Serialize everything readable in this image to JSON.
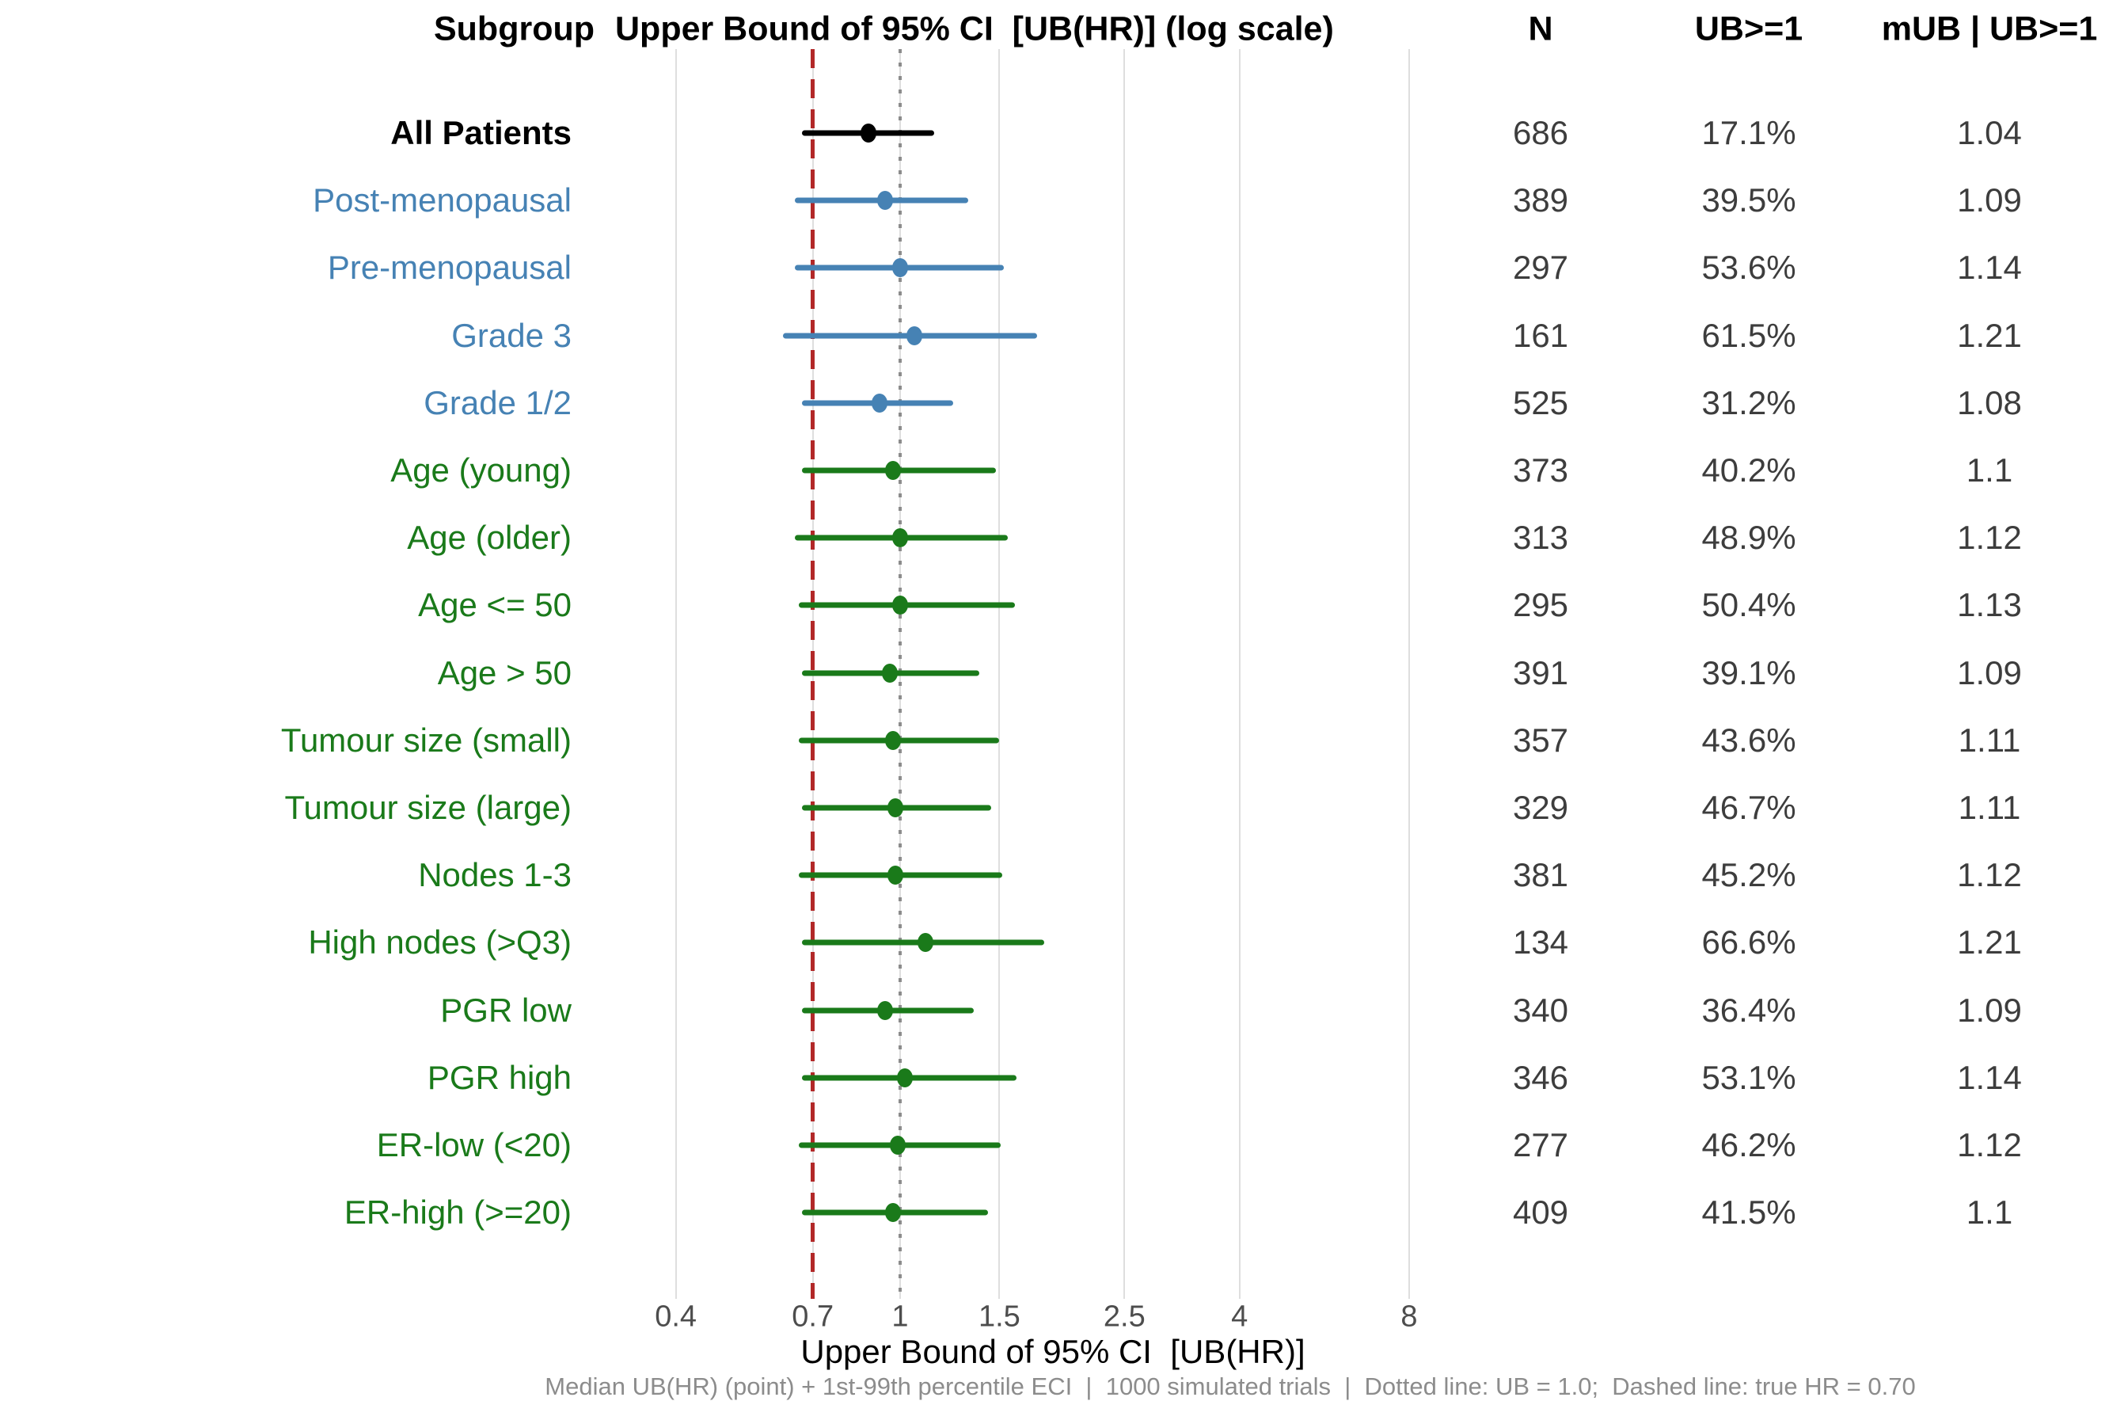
{
  "header": {
    "subgroup": "Subgroup",
    "plot_title": "Upper Bound of 95% CI  [UB(HR)] (log scale)",
    "n": "N",
    "ub_ge1": "UB>=1",
    "mub": "mUB | UB>=1"
  },
  "axis": {
    "title": "Upper Bound of 95% CI  [UB(HR)]",
    "tick_labels": [
      "0.4",
      "0.7",
      "1",
      "1.5",
      "2.5",
      "4",
      "8"
    ]
  },
  "caption": "Median UB(HR) (point) + 1st-99th percentile ECI  |  1000 simulated trials  |  Dotted line: UB = 1.0;  Dashed line: true HR = 0.70",
  "colors": {
    "all": "#000000",
    "blue": "#4682B4",
    "green": "#1A7A1A",
    "dashed_ref": "#B22828",
    "dotted_ref": "#8C8C8C",
    "grid": "#DEDEDE"
  },
  "chart_data": {
    "type": "forest",
    "x_scale": "log",
    "x_ticks": [
      0.4,
      0.7,
      1,
      1.5,
      2.5,
      4,
      8
    ],
    "xlim": [
      0.4,
      8
    ],
    "reference_lines": {
      "dotted_ub": 1.0,
      "dashed_true_hr": 0.7
    },
    "columns": [
      "Subgroup",
      "Upper Bound of 95% CI  [UB(HR)] (log scale)",
      "N",
      "UB>=1",
      "mUB | UB>=1"
    ],
    "rows": [
      {
        "label": "All Patients",
        "color_group": "all",
        "ci_low": 0.67,
        "point": 0.88,
        "ci_high": 1.15,
        "n": "686",
        "ub": "17.1%",
        "mub": "1.04"
      },
      {
        "label": "Post-menopausal",
        "color_group": "blue",
        "ci_low": 0.65,
        "point": 0.94,
        "ci_high": 1.32,
        "n": "389",
        "ub": "39.5%",
        "mub": "1.09"
      },
      {
        "label": "Pre-menopausal",
        "color_group": "blue",
        "ci_low": 0.65,
        "point": 1.0,
        "ci_high": 1.53,
        "n": "297",
        "ub": "53.6%",
        "mub": "1.14"
      },
      {
        "label": "Grade 3",
        "color_group": "blue",
        "ci_low": 0.62,
        "point": 1.06,
        "ci_high": 1.75,
        "n": "161",
        "ub": "61.5%",
        "mub": "1.21"
      },
      {
        "label": "Grade 1/2",
        "color_group": "blue",
        "ci_low": 0.67,
        "point": 0.92,
        "ci_high": 1.24,
        "n": "525",
        "ub": "31.2%",
        "mub": "1.08"
      },
      {
        "label": "Age (young)",
        "color_group": "green",
        "ci_low": 0.67,
        "point": 0.97,
        "ci_high": 1.48,
        "n": "373",
        "ub": "40.2%",
        "mub": "1.1"
      },
      {
        "label": "Age (older)",
        "color_group": "green",
        "ci_low": 0.65,
        "point": 1.0,
        "ci_high": 1.55,
        "n": "313",
        "ub": "48.9%",
        "mub": "1.12"
      },
      {
        "label": "Age <= 50",
        "color_group": "green",
        "ci_low": 0.66,
        "point": 1.0,
        "ci_high": 1.6,
        "n": "295",
        "ub": "50.4%",
        "mub": "1.13"
      },
      {
        "label": "Age > 50",
        "color_group": "green",
        "ci_low": 0.67,
        "point": 0.96,
        "ci_high": 1.38,
        "n": "391",
        "ub": "39.1%",
        "mub": "1.09"
      },
      {
        "label": "Tumour size (small)",
        "color_group": "green",
        "ci_low": 0.66,
        "point": 0.97,
        "ci_high": 1.5,
        "n": "357",
        "ub": "43.6%",
        "mub": "1.11"
      },
      {
        "label": "Tumour size (large)",
        "color_group": "green",
        "ci_low": 0.67,
        "point": 0.98,
        "ci_high": 1.45,
        "n": "329",
        "ub": "46.7%",
        "mub": "1.11"
      },
      {
        "label": "Nodes 1-3",
        "color_group": "green",
        "ci_low": 0.66,
        "point": 0.98,
        "ci_high": 1.52,
        "n": "381",
        "ub": "45.2%",
        "mub": "1.12"
      },
      {
        "label": "High nodes (>Q3)",
        "color_group": "green",
        "ci_low": 0.67,
        "point": 1.11,
        "ci_high": 1.8,
        "n": "134",
        "ub": "66.6%",
        "mub": "1.21"
      },
      {
        "label": "PGR low",
        "color_group": "green",
        "ci_low": 0.67,
        "point": 0.94,
        "ci_high": 1.35,
        "n": "340",
        "ub": "36.4%",
        "mub": "1.09"
      },
      {
        "label": "PGR high",
        "color_group": "green",
        "ci_low": 0.67,
        "point": 1.02,
        "ci_high": 1.61,
        "n": "346",
        "ub": "53.1%",
        "mub": "1.14"
      },
      {
        "label": "ER-low (<20)",
        "color_group": "green",
        "ci_low": 0.66,
        "point": 0.99,
        "ci_high": 1.51,
        "n": "277",
        "ub": "46.2%",
        "mub": "1.12"
      },
      {
        "label": "ER-high (>=20)",
        "color_group": "green",
        "ci_low": 0.67,
        "point": 0.97,
        "ci_high": 1.43,
        "n": "409",
        "ub": "41.5%",
        "mub": "1.1"
      }
    ]
  }
}
